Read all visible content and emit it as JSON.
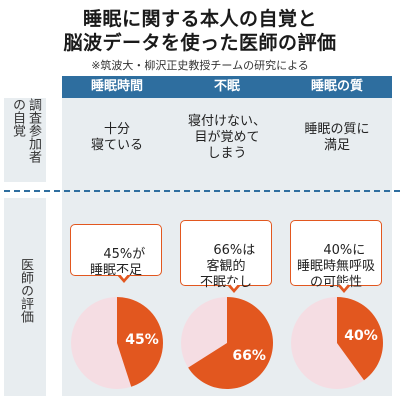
{
  "title": {
    "line1": "睡眠に関する本人の自覚と",
    "line2": "脳波データを使った医師の評価"
  },
  "note": "※筑波大・柳沢正史教授チームの研究による",
  "row_labels": {
    "participant_awareness": "調査参加者の自覚",
    "doctor_evaluation": "医師の評価"
  },
  "colors": {
    "header": "#2e6e9f",
    "panel": "#e8edf0",
    "pie_highlight": "#e2571f",
    "pie_rest": "#f5dde3",
    "arrow": "#2e8fbf"
  },
  "columns": [
    {
      "header": "睡眠時間",
      "awareness": "十分\n寝ている",
      "evaluation": "45%が\n睡眠不足",
      "percent_label": "45%"
    },
    {
      "header": "不眠",
      "awareness": "寝付けない、\n目が覚めて\nしまう",
      "evaluation": "66%は\n客観的\n不眠なし",
      "percent_label": "66%"
    },
    {
      "header": "睡眠の質",
      "awareness": "睡眠の質に\n満足",
      "evaluation": "40%に\n睡眠時無呼吸\nの可能性",
      "percent_label": "40%"
    }
  ],
  "chart_data": {
    "type": "pie",
    "charts": [
      {
        "column": "睡眠時間",
        "slices": [
          {
            "label": "45%",
            "value": 45
          },
          {
            "label": "",
            "value": 55
          }
        ]
      },
      {
        "column": "不眠",
        "slices": [
          {
            "label": "66%",
            "value": 66
          },
          {
            "label": "",
            "value": 34
          }
        ]
      },
      {
        "column": "睡眠の質",
        "slices": [
          {
            "label": "40%",
            "value": 40
          },
          {
            "label": "",
            "value": 60
          }
        ]
      }
    ]
  }
}
